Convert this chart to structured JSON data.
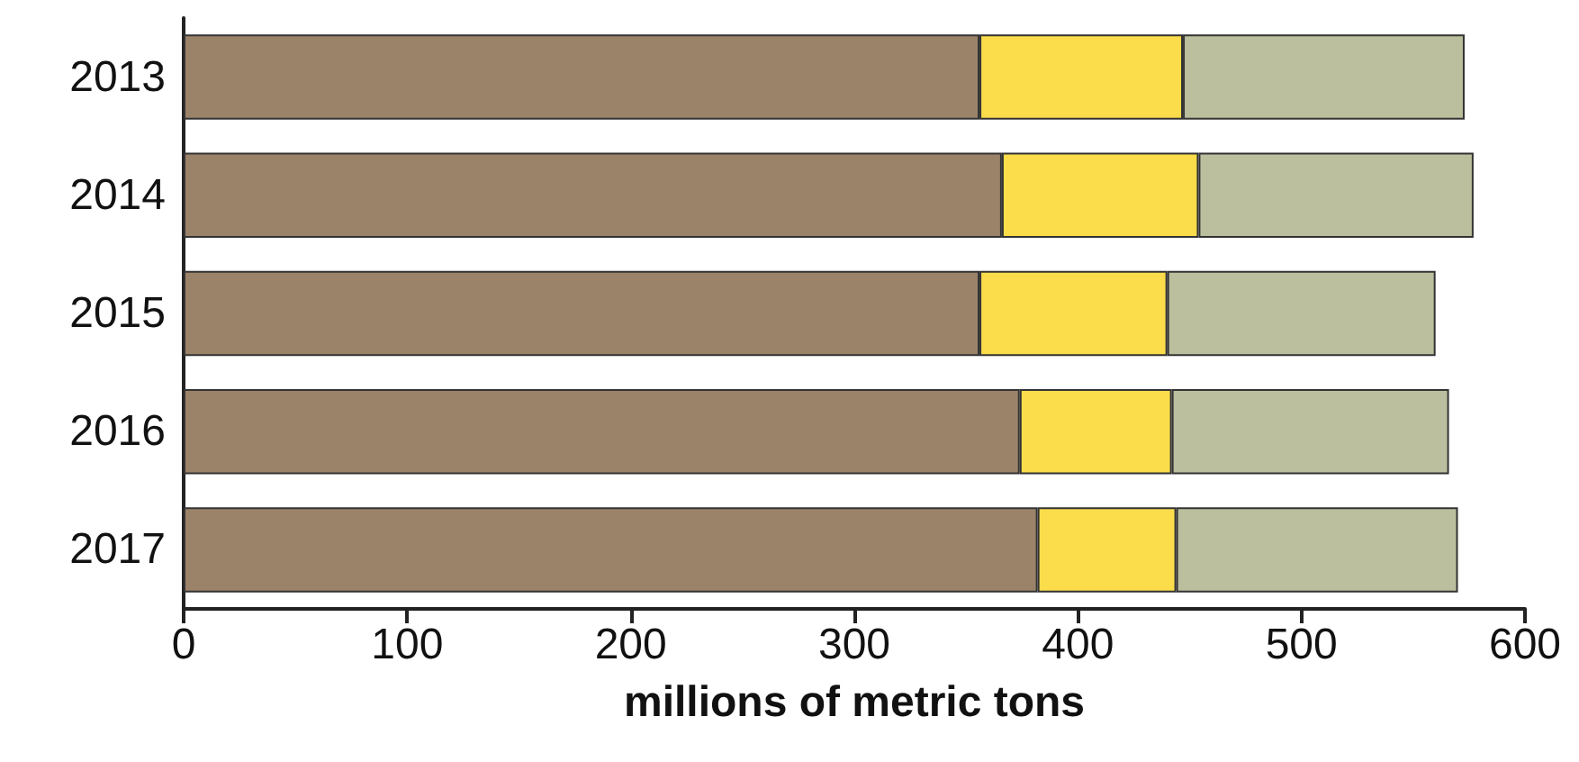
{
  "chart_data": {
    "type": "bar",
    "orientation": "horizontal",
    "stacked": true,
    "xlabel": "millions of metric tons",
    "categories": [
      "2013",
      "2014",
      "2015",
      "2016",
      "2017"
    ],
    "series": [
      {
        "color": "#9b836a",
        "values": [
          356,
          366,
          356,
          374,
          382
        ]
      },
      {
        "color": "#fbdc4a",
        "values": [
          91,
          88,
          84,
          68,
          62
        ]
      },
      {
        "color": "#bcbf9e",
        "values": [
          126,
          123,
          120,
          124,
          126
        ]
      }
    ],
    "xlim": [
      0,
      600
    ],
    "xticks": [
      0,
      100,
      200,
      300,
      400,
      500,
      600
    ]
  }
}
